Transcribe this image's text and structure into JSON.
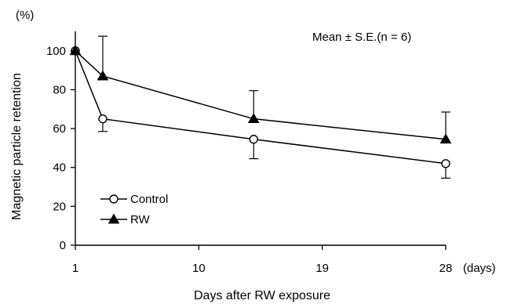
{
  "chart_data": {
    "type": "line",
    "annotation": "Mean ± S.E.(n = 6)",
    "xlabel": "Days after RW exposure",
    "x_unit": "(days)",
    "ylabel": "Magnetic particle retention",
    "y_unit": "(%)",
    "xlim": [
      1,
      28
    ],
    "ylim": [
      0,
      110
    ],
    "xticks": [
      1,
      10,
      19,
      28
    ],
    "yticks": [
      0,
      20,
      40,
      60,
      80,
      100
    ],
    "grid": false,
    "legend_position": "bottom-left",
    "series": [
      {
        "name": "Control",
        "marker": "open-circle",
        "x": [
          1,
          3,
          14,
          28
        ],
        "y": [
          100,
          65,
          54.5,
          42
        ],
        "se": [
          0,
          6.5,
          10,
          7.5
        ]
      },
      {
        "name": "RW",
        "marker": "filled-triangle",
        "x": [
          1,
          3,
          14,
          28
        ],
        "y": [
          100,
          87,
          65,
          54.5
        ],
        "se": [
          0,
          20.5,
          14.5,
          14
        ]
      }
    ]
  }
}
